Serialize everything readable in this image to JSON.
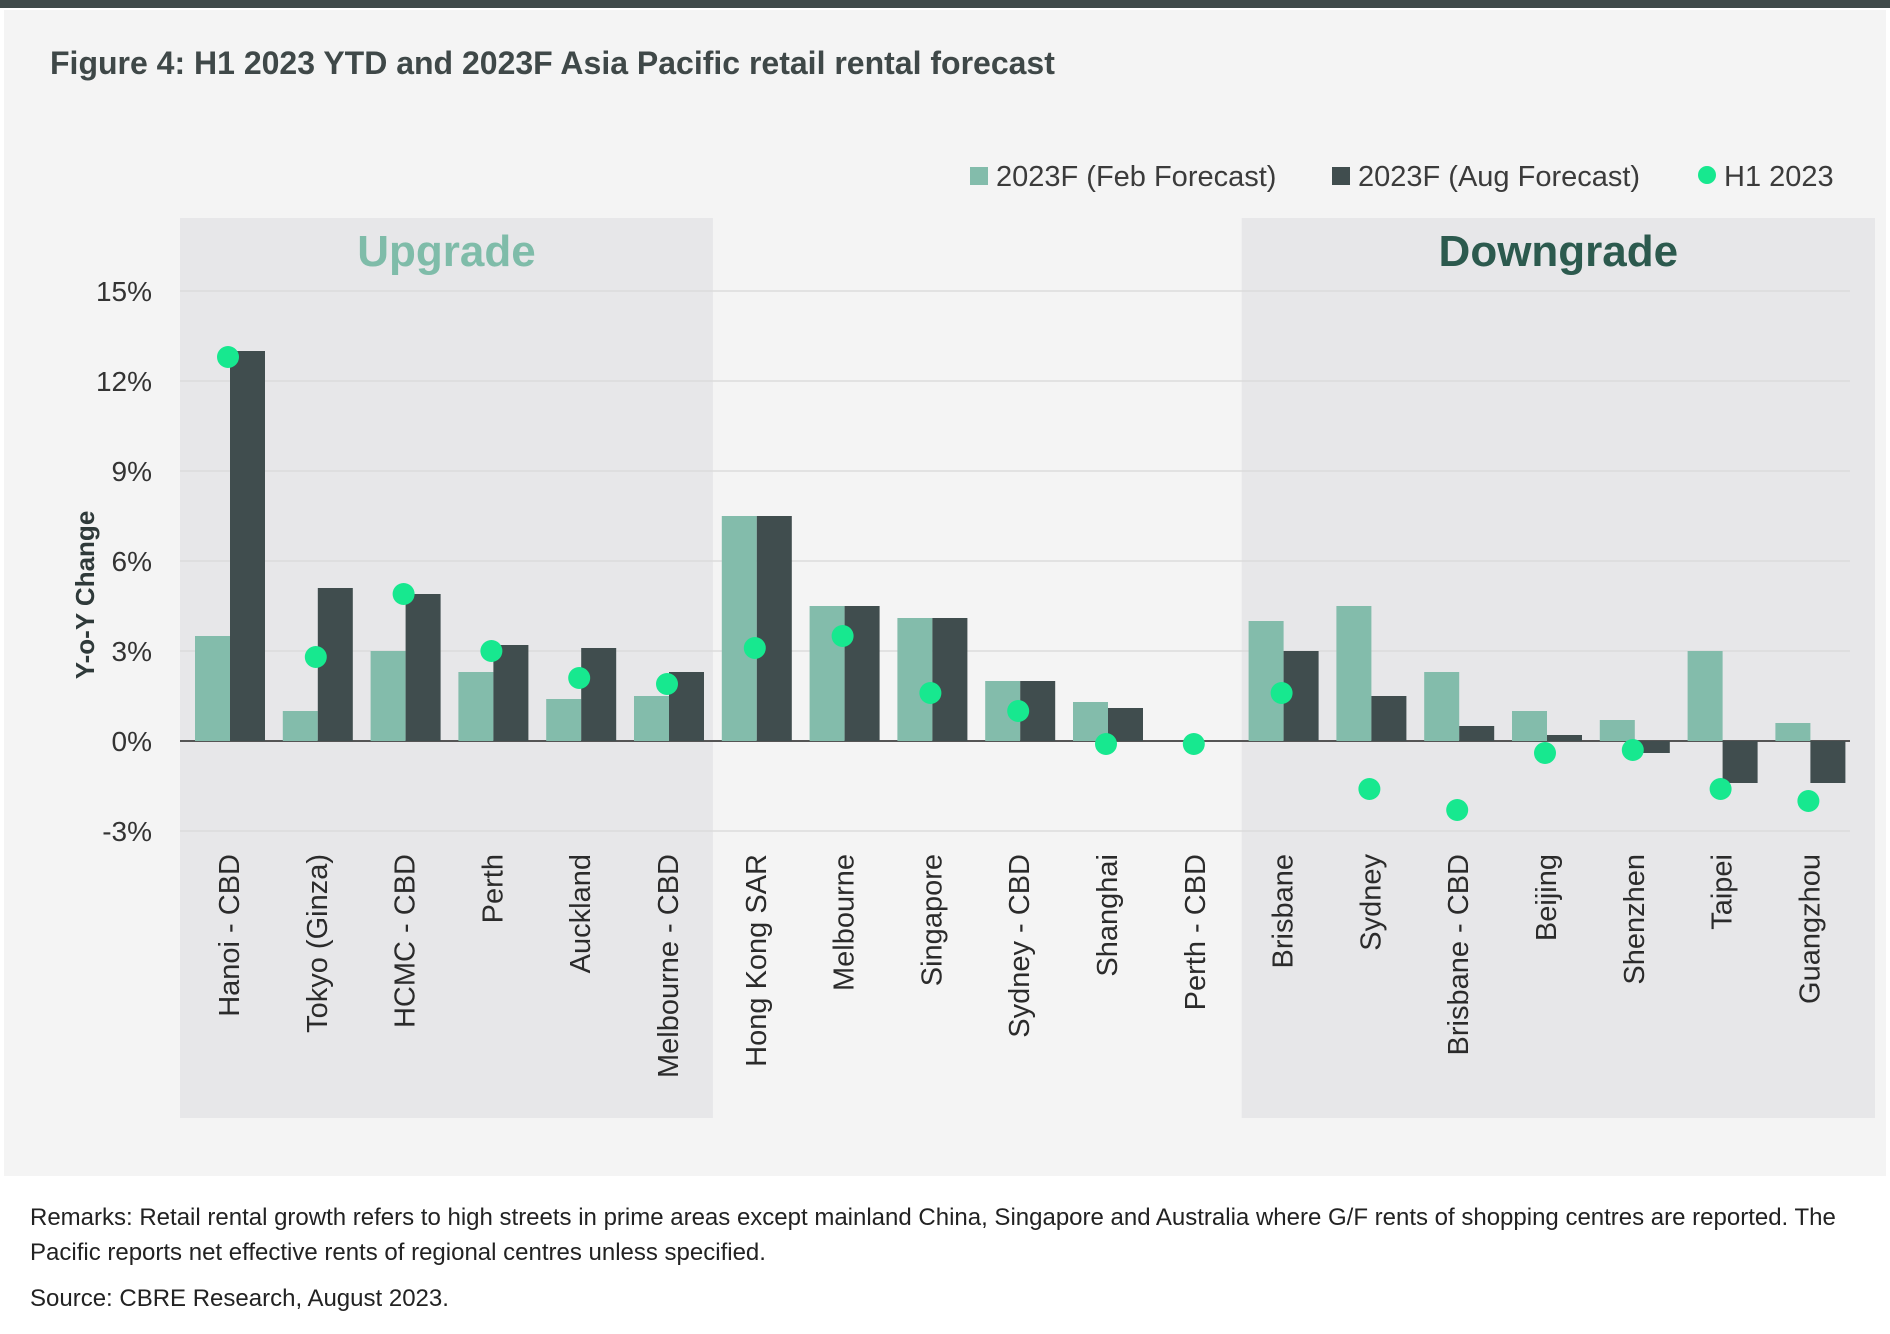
{
  "page": {
    "remarks": "Remarks: Retail rental growth refers to high streets in prime areas except mainland China, Singapore and Australia where G/F rents of shopping centres are reported. The Pacific reports net effective rents of regional centres unless specified.",
    "source": "Source: CBRE Research, August 2023."
  },
  "colors": {
    "feb": "#83bcab",
    "aug": "#404d4e",
    "h1": "#17e88f",
    "upgrade_text": "#7fbca9",
    "downgrade_text": "#2c5a4e",
    "zone_bg": "#e7e7e9"
  },
  "chart_data": {
    "type": "bar",
    "title": "Figure 4: H1 2023 YTD and 2023F Asia Pacific retail rental forecast",
    "ylabel": "Y-o-Y Change",
    "xlabel": "",
    "ylim": [
      -3,
      15
    ],
    "yticks": [
      15,
      12,
      9,
      6,
      3,
      0,
      -3
    ],
    "ytick_labels": [
      "15%",
      "12%",
      "9%",
      "6%",
      "3%",
      "0%",
      "-3%"
    ],
    "grid": true,
    "legend_position": "top-right",
    "categories": [
      "Hanoi - CBD",
      "Tokyo (Ginza)",
      "HCMC - CBD",
      "Perth",
      "Auckland",
      "Melbourne - CBD",
      "Hong Kong SAR",
      "Melbourne",
      "Singapore",
      "Sydney - CBD",
      "Shanghai",
      "Perth - CBD",
      "Brisbane",
      "Sydney",
      "Brisbane - CBD",
      "Beijing",
      "Shenzhen",
      "Taipei",
      "Guangzhou"
    ],
    "series": [
      {
        "name": "2023F (Feb Forecast)",
        "kind": "bar",
        "values": [
          3.5,
          1.0,
          3.0,
          2.3,
          1.4,
          1.5,
          7.5,
          4.5,
          4.1,
          2.0,
          1.3,
          0.0,
          4.0,
          4.5,
          2.3,
          1.0,
          0.7,
          3.0,
          0.6
        ]
      },
      {
        "name": "2023F (Aug Forecast)",
        "kind": "bar",
        "values": [
          13.0,
          5.1,
          4.9,
          3.2,
          3.1,
          2.3,
          7.5,
          4.5,
          4.1,
          2.0,
          1.1,
          0.0,
          3.0,
          1.5,
          0.5,
          0.2,
          -0.4,
          -1.4,
          -1.4
        ]
      },
      {
        "name": "H1 2023",
        "kind": "dot",
        "values": [
          12.8,
          2.8,
          4.9,
          3.0,
          2.1,
          1.9,
          3.1,
          3.5,
          1.6,
          1.0,
          -0.1,
          -0.1,
          1.6,
          -1.6,
          -2.3,
          -0.4,
          -0.3,
          -1.6,
          -2.0
        ]
      }
    ],
    "annotations": [
      {
        "text": "Upgrade",
        "from": 0,
        "to": 5
      },
      {
        "text": "Downgrade",
        "from": 12,
        "to": 18
      }
    ]
  }
}
